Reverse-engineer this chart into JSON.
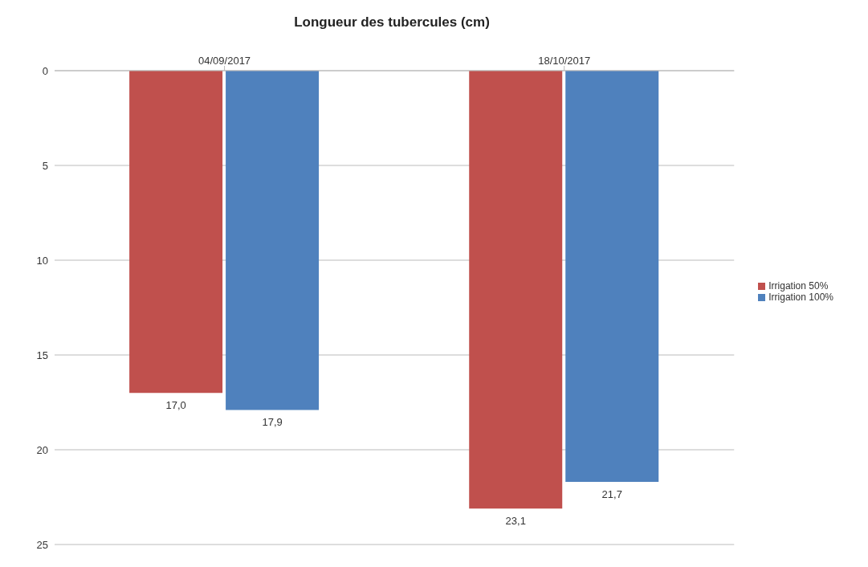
{
  "chart_data": {
    "type": "bar",
    "title": "Longueur des tubercules (cm)",
    "categories": [
      "04/09/2017",
      "18/10/2017"
    ],
    "series": [
      {
        "name": "Irrigation 50%",
        "color": "#c0504d",
        "values": [
          17.0,
          23.1
        ],
        "value_labels": [
          "17,0",
          "23,1"
        ]
      },
      {
        "name": "Irrigation 100%",
        "color": "#4f81bd",
        "values": [
          17.9,
          21.7
        ],
        "value_labels": [
          "17,9",
          "21,7"
        ]
      }
    ],
    "ylim": [
      25,
      0
    ],
    "yticks": [
      0,
      5,
      10,
      15,
      20,
      25
    ],
    "grid": "y",
    "legend": "right"
  }
}
